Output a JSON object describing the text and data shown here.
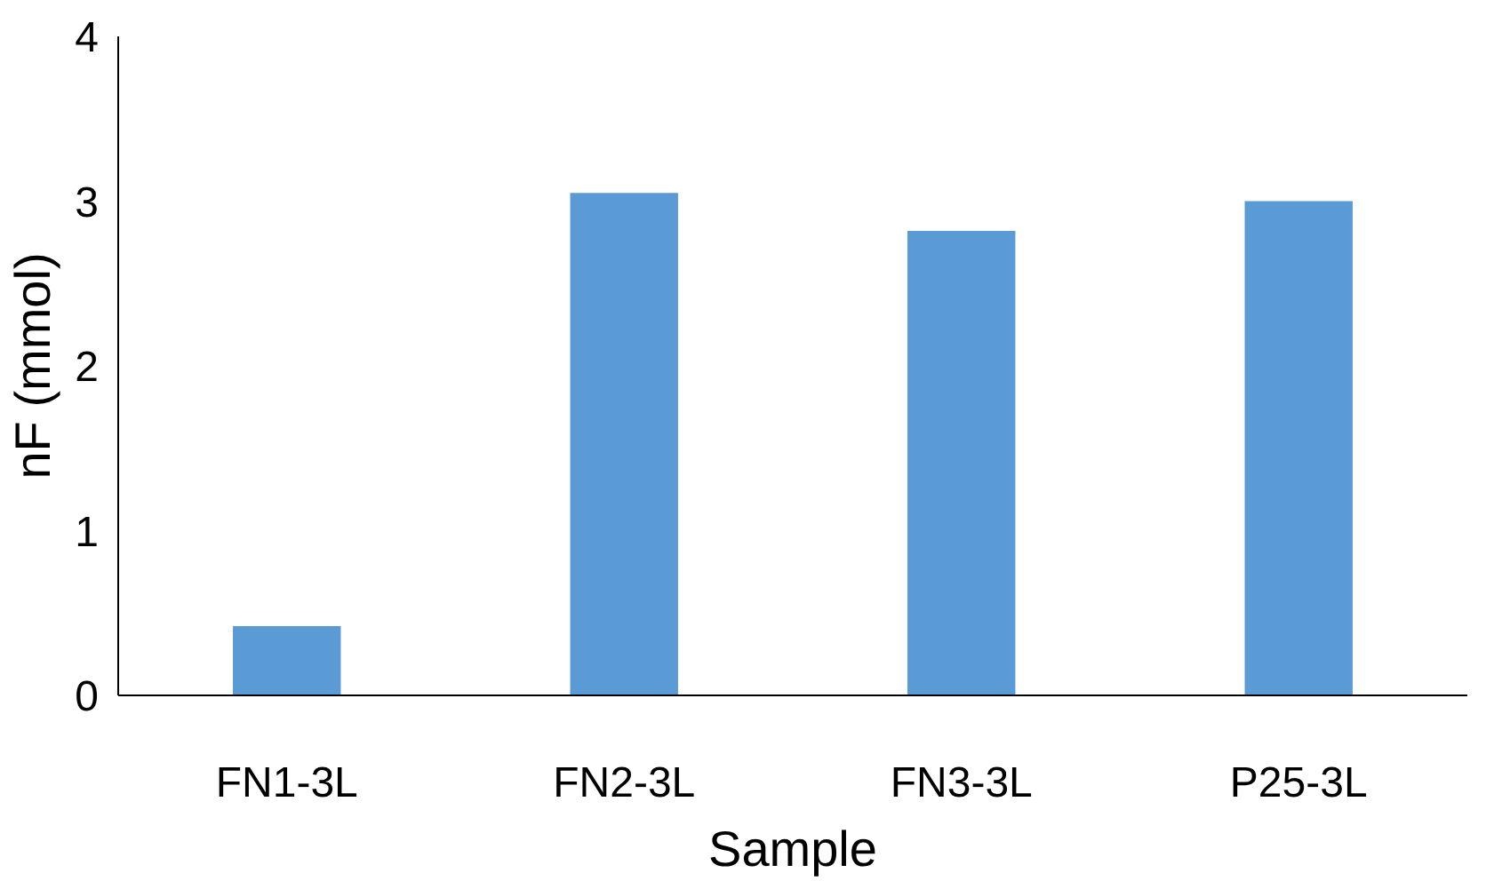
{
  "chart_data": {
    "type": "bar",
    "xlabel": "Sample",
    "ylabel": "nF (mmol)",
    "categories": [
      "FN1-3L",
      "FN2-3L",
      "FN3-3L",
      "P25-3L"
    ],
    "values": [
      0.42,
      3.05,
      2.82,
      3.0
    ],
    "color": "#5b9bd5",
    "ylim": [
      0,
      4
    ],
    "yticks": [
      0,
      1,
      2,
      3,
      4
    ],
    "grid": false
  }
}
